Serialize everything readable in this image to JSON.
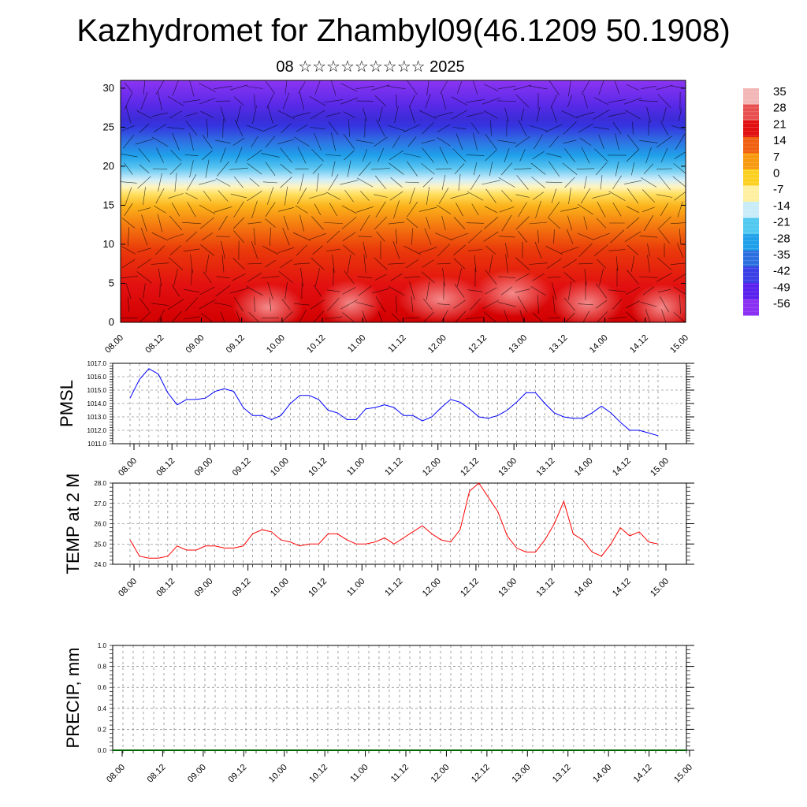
{
  "title": "Kazhydromet for Zhambyl09(46.1209 50.1908)",
  "subtitle": "08 ☆☆☆☆☆☆☆☆☆ 2025",
  "colorbar": {
    "labels": [
      "35",
      "28",
      "21",
      "14",
      "7",
      "0",
      "-7",
      "-14",
      "-21",
      "-28",
      "-35",
      "-42",
      "-49",
      "-56"
    ],
    "colors": [
      "#f2b6b6",
      "#e85050",
      "#e21010",
      "#f06010",
      "#f89a10",
      "#fcd020",
      "#fff0a0",
      "#c8ecf8",
      "#50c8f0",
      "#20a0ea",
      "#2c70e0",
      "#3a40e6",
      "#5a20ee",
      "#8a30f2"
    ]
  },
  "chart_data": [
    {
      "type": "heatmap",
      "name": "section",
      "x_tick_labels": [
        "08.00",
        "08.12",
        "09.00",
        "09.12",
        "10.00",
        "10.12",
        "11.00",
        "11.12",
        "12.00",
        "12.12",
        "13.00",
        "13.12",
        "14.00",
        "14.12",
        "15.00"
      ],
      "y_tick_labels": [
        "0",
        "5",
        "10",
        "15",
        "20",
        "25",
        "30"
      ],
      "ylim": [
        0,
        31
      ],
      "value_range": [
        -56,
        35
      ],
      "overlay": "wind vectors"
    },
    {
      "type": "line",
      "name": "pmsl",
      "ylabel": "PMSL",
      "ylim": [
        1011.0,
        1017.0
      ],
      "y_ticks": [
        "1011.0",
        "1012.0",
        "1013.0",
        "1014.0",
        "1015.0",
        "1016.0",
        "1017.0"
      ],
      "x_tick_labels": [
        "08.00",
        "08.12",
        "09.00",
        "09.12",
        "10.00",
        "10.12",
        "11.00",
        "11.12",
        "12.00",
        "12.12",
        "13.00",
        "13.12",
        "14.00",
        "14.12",
        "15.00"
      ],
      "color": "#0000ff",
      "values": [
        1014.4,
        1015.8,
        1016.6,
        1016.2,
        1014.8,
        1013.9,
        1014.3,
        1014.3,
        1014.4,
        1014.9,
        1015.1,
        1014.9,
        1013.7,
        1013.1,
        1013.1,
        1012.8,
        1013.1,
        1014.0,
        1014.6,
        1014.6,
        1014.3,
        1013.5,
        1013.3,
        1012.8,
        1012.8,
        1013.6,
        1013.7,
        1013.9,
        1013.7,
        1013.1,
        1013.1,
        1012.7,
        1013.0,
        1013.7,
        1014.3,
        1014.1,
        1013.6,
        1013.0,
        1012.9,
        1013.1,
        1013.5,
        1014.1,
        1014.8,
        1014.8,
        1014.0,
        1013.3,
        1013.0,
        1012.9,
        1012.9,
        1013.3,
        1013.8,
        1013.3,
        1012.6,
        1012.0,
        1012.0,
        1011.8,
        1011.6
      ]
    },
    {
      "type": "line",
      "name": "temp",
      "ylabel": "TEMP at 2 M",
      "ylim": [
        24.0,
        28.0
      ],
      "y_ticks": [
        "24.0",
        "25.0",
        "26.0",
        "27.0",
        "28.0"
      ],
      "x_tick_labels": [
        "08.00",
        "08.12",
        "09.00",
        "09.12",
        "10.00",
        "10.12",
        "11.00",
        "11.12",
        "12.00",
        "12.12",
        "13.00",
        "13.12",
        "14.00",
        "14.12",
        "15.00"
      ],
      "color": "#ff0000",
      "values": [
        25.2,
        24.4,
        24.3,
        24.3,
        24.4,
        24.9,
        24.7,
        24.7,
        24.9,
        24.9,
        24.8,
        24.8,
        24.9,
        25.5,
        25.7,
        25.6,
        25.2,
        25.1,
        24.9,
        25.0,
        25.0,
        25.5,
        25.5,
        25.2,
        25.0,
        25.0,
        25.1,
        25.3,
        25.0,
        25.3,
        25.6,
        25.9,
        25.5,
        25.2,
        25.1,
        25.7,
        27.6,
        28.0,
        27.3,
        26.6,
        25.4,
        24.8,
        24.6,
        24.6,
        25.2,
        26.0,
        27.1,
        25.5,
        25.2,
        24.6,
        24.4,
        25.0,
        25.8,
        25.4,
        25.6,
        25.1,
        25.0
      ]
    },
    {
      "type": "line",
      "name": "precip",
      "ylabel": "PRECIP, mm",
      "ylim": [
        0.0,
        1.0
      ],
      "y_ticks": [
        "0.0",
        "0.2",
        "0.4",
        "0.6",
        "0.8",
        "1.0"
      ],
      "x_tick_labels": [
        "08.00",
        "08.12",
        "09.00",
        "09.12",
        "10.00",
        "10.12",
        "11.00",
        "11.12",
        "12.00",
        "12.12",
        "13.00",
        "13.12",
        "14.00",
        "14.12",
        "15.00"
      ],
      "color": "#006400",
      "values": [
        0,
        0,
        0,
        0,
        0,
        0,
        0,
        0,
        0,
        0,
        0,
        0,
        0,
        0,
        0,
        0,
        0,
        0,
        0,
        0,
        0,
        0,
        0,
        0,
        0,
        0,
        0,
        0,
        0,
        0,
        0,
        0,
        0,
        0,
        0,
        0,
        0,
        0,
        0,
        0,
        0,
        0,
        0,
        0,
        0,
        0,
        0,
        0,
        0,
        0,
        0,
        0,
        0,
        0,
        0,
        0,
        0
      ]
    }
  ]
}
